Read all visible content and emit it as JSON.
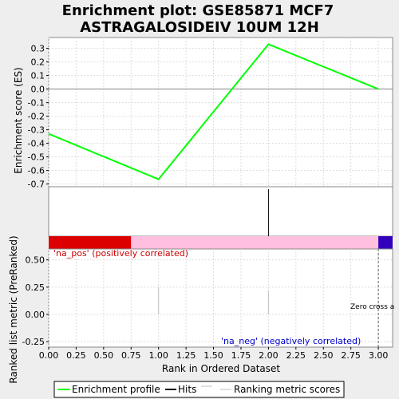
{
  "title_line1": "Enrichment plot: GSE85871 MCF7",
  "title_line2": "ASTRAGALOSIDEIV 10UM 12H",
  "chart_data": [
    {
      "type": "line",
      "panel": "enrichment-score",
      "ylabel": "Enrichment score (ES)",
      "xlim": [
        0,
        3.13
      ],
      "ylim": [
        -0.72,
        0.38
      ],
      "yticks": [
        0.3,
        0.2,
        0.1,
        0.0,
        -0.1,
        -0.2,
        -0.3,
        -0.4,
        -0.5,
        -0.6,
        -0.7
      ],
      "ytick_labels": [
        "0.3",
        "0.2",
        "0.1",
        "0.0",
        "-0.1",
        "-0.2",
        "-0.3",
        "-0.4",
        "-0.5",
        "-0.6",
        "-0.7"
      ],
      "grid": true,
      "series": [
        {
          "name": "Enrichment profile",
          "color": "#00ff00",
          "x": [
            0,
            1,
            2,
            3
          ],
          "y": [
            -0.33,
            -0.665,
            0.33,
            0.0
          ]
        }
      ]
    },
    {
      "type": "hits",
      "panel": "hits",
      "hits_x": [
        2
      ],
      "color": "#000000"
    },
    {
      "type": "heatmap-bar",
      "panel": "correlation-bar",
      "segments": [
        {
          "x0": 0.0,
          "x1": 0.75,
          "color": "#dd0000"
        },
        {
          "x0": 0.75,
          "x1": 3.0,
          "color": "#ffc0e0"
        },
        {
          "x0": 3.0,
          "x1": 3.13,
          "color": "#3300bb"
        }
      ]
    },
    {
      "type": "bar",
      "panel": "ranking-metric",
      "xlabel": "Rank in Ordered Dataset",
      "ylabel": "Ranked list metric (PreRanked)",
      "xlim": [
        0,
        3.13
      ],
      "ylim": [
        -0.3,
        0.6
      ],
      "yticks": [
        0.5,
        0.25,
        0.0,
        -0.25
      ],
      "ytick_labels": [
        "0.50",
        "0.25",
        "0.00",
        "-0.25"
      ],
      "xticks": [
        0,
        0.25,
        0.5,
        0.75,
        1.0,
        1.25,
        1.5,
        1.75,
        2.0,
        2.25,
        2.5,
        2.75,
        3.0
      ],
      "xtick_labels": [
        "0.00",
        "0.25",
        "0.50",
        "0.75",
        "1.00",
        "1.25",
        "1.50",
        "1.75",
        "2.00",
        "2.25",
        "2.50",
        "2.75",
        "3.00"
      ],
      "grid": true,
      "bars": [
        {
          "x": 1,
          "value": 0.25,
          "color": "#c0c0c0"
        },
        {
          "x": 2,
          "value": 0.22,
          "color": "#c0c0c0"
        }
      ],
      "zero_cross_x": 3,
      "zero_cross_label": "Zero cross a",
      "pos_label": "'na_pos' (positively correlated)",
      "pos_color": "#cc0000",
      "neg_label": "'na_neg' (negatively correlated)",
      "neg_color": "#0000cc"
    }
  ],
  "legend": [
    {
      "label": "Enrichment profile",
      "color": "#00ff00"
    },
    {
      "label": "Hits",
      "color": "#000000"
    },
    {
      "label": "Ranking metric scores",
      "color": "#c0c0c0"
    }
  ]
}
